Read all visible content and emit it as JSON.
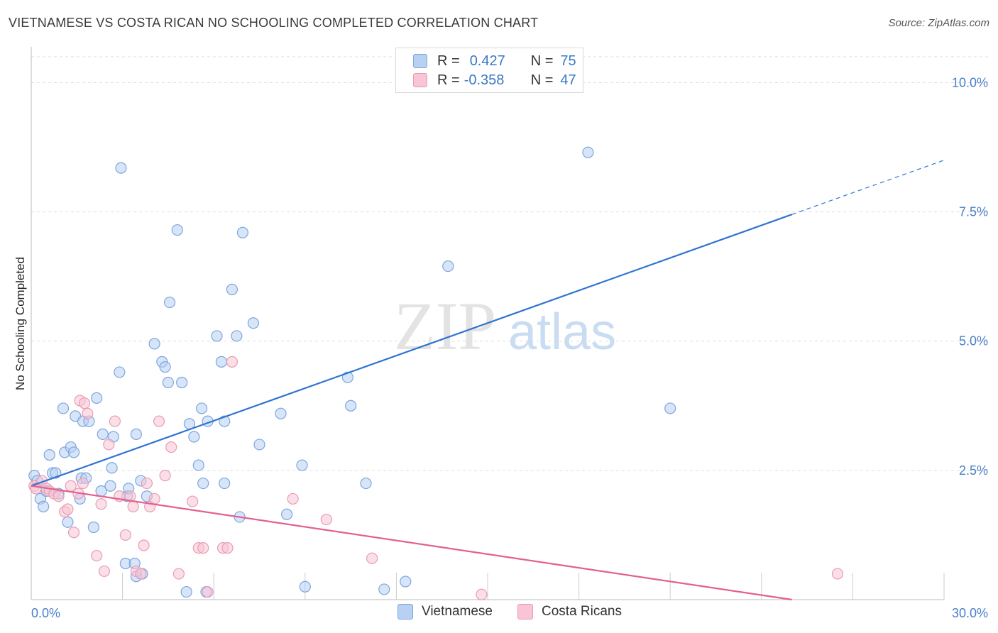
{
  "header": {
    "title": "VIETNAMESE VS COSTA RICAN NO SCHOOLING COMPLETED CORRELATION CHART",
    "source": "Source: ZipAtlas.com"
  },
  "watermark": {
    "zip": "ZIP",
    "atlas": "atlas"
  },
  "legend_top": [
    {
      "r_label": "R =",
      "r_value": "0.427",
      "n_label": "N =",
      "n_value": "75"
    },
    {
      "r_label": "R =",
      "r_value": "-0.358",
      "n_label": "N =",
      "n_value": "47"
    }
  ],
  "legend_bottom": [
    "Vietnamese",
    "Costa Ricans"
  ],
  "colors": {
    "blue_fill": "#b8d0f2",
    "blue_stroke": "#7aa7df",
    "blue_line": "#2f74d0",
    "pink_fill": "#f8c5d4",
    "pink_stroke": "#eb9ab4",
    "pink_line": "#e2608f",
    "tick_text": "#4a7fc8",
    "grid": "#dddddd"
  },
  "chart_data": {
    "type": "scatter",
    "title": "VIETNAMESE VS COSTA RICAN NO SCHOOLING COMPLETED CORRELATION CHART",
    "xlabel": "",
    "ylabel": "No Schooling Completed",
    "xlim": [
      0,
      30
    ],
    "ylim": [
      0,
      10.5
    ],
    "x_tick_labels": [
      "0.0%",
      "30.0%"
    ],
    "y_ticks": [
      2.5,
      5.0,
      7.5,
      10.0
    ],
    "y_tick_labels": [
      "2.5%",
      "5.0%",
      "7.5%",
      "10.0%"
    ],
    "grid": true,
    "legend_placement": "bottom",
    "series": [
      {
        "name": "Vietnamese",
        "r": 0.427,
        "n": 75,
        "trend": {
          "x0": 0,
          "y0": 2.2,
          "x1": 25,
          "y1": 7.45,
          "dashed_to_x": 30,
          "dashed_to_y": 8.5
        },
        "points": [
          [
            0.1,
            2.4
          ],
          [
            0.2,
            2.3
          ],
          [
            0.3,
            1.95
          ],
          [
            0.4,
            1.8
          ],
          [
            0.5,
            2.1
          ],
          [
            0.6,
            2.8
          ],
          [
            0.7,
            2.45
          ],
          [
            0.8,
            2.45
          ],
          [
            0.9,
            2.05
          ],
          [
            1.1,
            2.85
          ],
          [
            1.05,
            3.7
          ],
          [
            1.2,
            1.5
          ],
          [
            1.3,
            2.95
          ],
          [
            1.4,
            2.85
          ],
          [
            1.45,
            3.55
          ],
          [
            1.6,
            1.95
          ],
          [
            1.65,
            2.35
          ],
          [
            1.7,
            3.45
          ],
          [
            1.8,
            2.35
          ],
          [
            1.9,
            3.45
          ],
          [
            2.05,
            1.4
          ],
          [
            2.15,
            3.9
          ],
          [
            2.3,
            2.1
          ],
          [
            2.35,
            3.2
          ],
          [
            2.6,
            2.2
          ],
          [
            2.65,
            2.55
          ],
          [
            2.7,
            3.15
          ],
          [
            2.9,
            4.4
          ],
          [
            2.95,
            8.35
          ],
          [
            3.1,
            0.7
          ],
          [
            3.15,
            2.0
          ],
          [
            3.2,
            2.15
          ],
          [
            3.4,
            0.7
          ],
          [
            3.45,
            0.45
          ],
          [
            3.45,
            3.2
          ],
          [
            3.65,
            0.5
          ],
          [
            3.6,
            2.3
          ],
          [
            3.8,
            2.0
          ],
          [
            4.05,
            4.95
          ],
          [
            4.3,
            4.6
          ],
          [
            4.4,
            4.5
          ],
          [
            4.5,
            4.2
          ],
          [
            4.55,
            5.75
          ],
          [
            4.8,
            7.15
          ],
          [
            4.95,
            4.2
          ],
          [
            5.1,
            0.15
          ],
          [
            5.2,
            3.4
          ],
          [
            5.35,
            3.15
          ],
          [
            5.5,
            2.6
          ],
          [
            5.6,
            3.7
          ],
          [
            5.65,
            2.25
          ],
          [
            5.75,
            0.15
          ],
          [
            5.8,
            3.45
          ],
          [
            6.1,
            5.1
          ],
          [
            6.25,
            4.6
          ],
          [
            6.35,
            2.25
          ],
          [
            6.35,
            3.45
          ],
          [
            6.6,
            6.0
          ],
          [
            6.75,
            5.1
          ],
          [
            6.85,
            1.6
          ],
          [
            6.95,
            7.1
          ],
          [
            7.3,
            5.35
          ],
          [
            7.5,
            3.0
          ],
          [
            8.2,
            3.6
          ],
          [
            8.4,
            1.65
          ],
          [
            8.9,
            2.6
          ],
          [
            9.0,
            0.25
          ],
          [
            10.4,
            4.3
          ],
          [
            10.5,
            3.75
          ],
          [
            11.0,
            2.25
          ],
          [
            11.6,
            0.2
          ],
          [
            12.3,
            0.35
          ],
          [
            13.7,
            6.45
          ],
          [
            18.3,
            8.65
          ],
          [
            21.0,
            3.7
          ]
        ]
      },
      {
        "name": "Costa Ricans",
        "r": -0.358,
        "n": 47,
        "trend": {
          "x0": 0,
          "y0": 2.2,
          "x1": 25,
          "y1": 0.0
        },
        "points": [
          [
            0.1,
            2.2
          ],
          [
            0.15,
            2.15
          ],
          [
            0.35,
            2.3
          ],
          [
            0.5,
            2.15
          ],
          [
            0.6,
            2.1
          ],
          [
            0.75,
            2.05
          ],
          [
            0.9,
            2.0
          ],
          [
            1.1,
            1.7
          ],
          [
            1.2,
            1.75
          ],
          [
            1.3,
            2.2
          ],
          [
            1.4,
            1.3
          ],
          [
            1.55,
            2.05
          ],
          [
            1.6,
            3.85
          ],
          [
            1.7,
            2.25
          ],
          [
            1.75,
            3.8
          ],
          [
            1.85,
            3.6
          ],
          [
            2.15,
            0.85
          ],
          [
            2.3,
            1.85
          ],
          [
            2.4,
            0.55
          ],
          [
            2.55,
            3.0
          ],
          [
            2.75,
            3.45
          ],
          [
            2.9,
            2.0
          ],
          [
            3.1,
            1.25
          ],
          [
            3.25,
            2.0
          ],
          [
            3.35,
            1.8
          ],
          [
            3.45,
            0.55
          ],
          [
            3.6,
            0.5
          ],
          [
            3.7,
            1.05
          ],
          [
            3.8,
            2.25
          ],
          [
            3.9,
            1.8
          ],
          [
            4.05,
            1.95
          ],
          [
            4.2,
            3.45
          ],
          [
            4.4,
            2.4
          ],
          [
            4.6,
            2.95
          ],
          [
            4.85,
            0.5
          ],
          [
            5.3,
            1.9
          ],
          [
            5.5,
            1.0
          ],
          [
            5.65,
            1.0
          ],
          [
            5.8,
            0.15
          ],
          [
            6.3,
            1.0
          ],
          [
            6.45,
            1.0
          ],
          [
            6.6,
            4.6
          ],
          [
            8.6,
            1.95
          ],
          [
            9.7,
            1.55
          ],
          [
            11.2,
            0.8
          ],
          [
            14.8,
            0.1
          ],
          [
            26.5,
            0.5
          ]
        ]
      }
    ]
  }
}
